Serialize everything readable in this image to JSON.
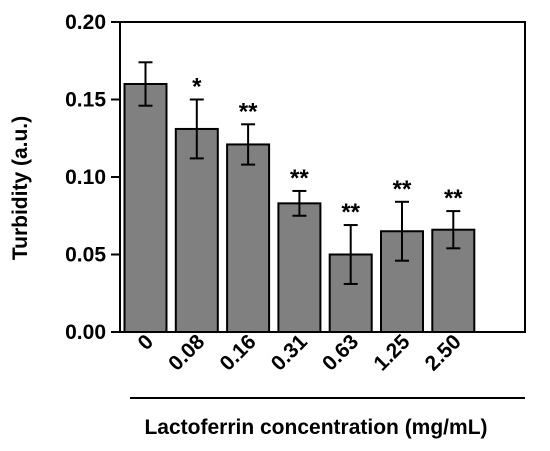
{
  "chart_data": {
    "type": "bar",
    "title": "",
    "xlabel": "Lactoferrin concentration (mg/mL)",
    "ylabel": "Turbidity (a.u.)",
    "ylim": [
      0.0,
      0.2
    ],
    "yticks": [
      "0.00",
      "0.05",
      "0.10",
      "0.15",
      "0.20"
    ],
    "categories": [
      "0",
      "0.08",
      "0.16",
      "0.31",
      "0.63",
      "1.25",
      "2.50"
    ],
    "values": [
      0.16,
      0.131,
      0.121,
      0.083,
      0.05,
      0.065,
      0.066
    ],
    "errors": [
      0.014,
      0.019,
      0.013,
      0.008,
      0.019,
      0.019,
      0.012
    ],
    "significance": [
      "",
      "*",
      "**",
      "**",
      "**",
      "**",
      "**"
    ],
    "bar_color": "#808080",
    "grid": false
  }
}
